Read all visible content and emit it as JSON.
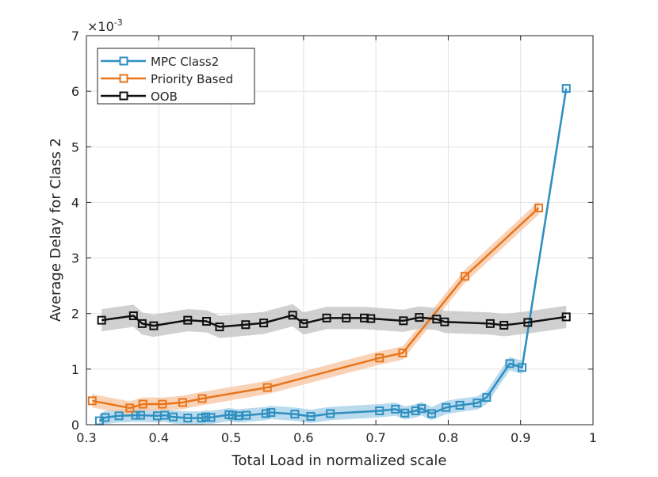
{
  "chart_data": {
    "type": "line",
    "title": "",
    "xlabel": "Total Load in normalized scale",
    "ylabel": "Average Delay for Class 2",
    "exponent_label": "×10",
    "exponent_power": "-3",
    "xlim": [
      0.3,
      1.0
    ],
    "ylim": [
      0,
      7
    ],
    "xticks": [
      0.3,
      0.4,
      0.5,
      0.6,
      0.7,
      0.8,
      0.9,
      1.0
    ],
    "xtick_labels": [
      "0.3",
      "0.4",
      "0.5",
      "0.6",
      "0.7",
      "0.8",
      "0.9",
      "1"
    ],
    "yticks": [
      0,
      1,
      2,
      3,
      4,
      5,
      6,
      7
    ],
    "ytick_labels": [
      "0",
      "1",
      "2",
      "3",
      "4",
      "5",
      "6",
      "7"
    ],
    "grid": true,
    "legend_position": "top-left",
    "series": [
      {
        "name": "MPC Class2",
        "color": "#2f8fc0",
        "band_color": "#a8d2e8",
        "band_width": 0.12,
        "x": [
          0.318,
          0.326,
          0.345,
          0.368,
          0.375,
          0.398,
          0.408,
          0.42,
          0.44,
          0.459,
          0.465,
          0.472,
          0.497,
          0.502,
          0.51,
          0.521,
          0.548,
          0.555,
          0.588,
          0.61,
          0.637,
          0.705,
          0.727,
          0.74,
          0.755,
          0.763,
          0.777,
          0.797,
          0.816,
          0.84,
          0.853,
          0.885,
          0.902,
          0.963
        ],
        "y": [
          0.07,
          0.13,
          0.16,
          0.17,
          0.17,
          0.16,
          0.17,
          0.14,
          0.12,
          0.12,
          0.14,
          0.13,
          0.18,
          0.17,
          0.16,
          0.17,
          0.2,
          0.22,
          0.19,
          0.15,
          0.2,
          0.25,
          0.28,
          0.21,
          0.25,
          0.29,
          0.2,
          0.31,
          0.35,
          0.39,
          0.49,
          1.1,
          1.03,
          6.05
        ]
      },
      {
        "name": "Priority Based",
        "color": "#e8751a",
        "band_color": "#f8c8a6",
        "band_width": 0.12,
        "x": [
          0.308,
          0.36,
          0.378,
          0.405,
          0.433,
          0.46,
          0.55,
          0.705,
          0.737,
          0.823,
          0.925
        ],
        "y": [
          0.43,
          0.3,
          0.37,
          0.37,
          0.4,
          0.47,
          0.67,
          1.2,
          1.29,
          2.67,
          3.9
        ]
      },
      {
        "name": "OOB",
        "color": "#101010",
        "band_color": "#c4c4c4",
        "band_width": 0.2,
        "x": [
          0.321,
          0.365,
          0.377,
          0.393,
          0.44,
          0.466,
          0.484,
          0.52,
          0.545,
          0.585,
          0.6,
          0.632,
          0.659,
          0.684,
          0.693,
          0.738,
          0.76,
          0.784,
          0.795,
          0.858,
          0.877,
          0.91,
          0.963
        ],
        "y": [
          1.88,
          1.96,
          1.82,
          1.78,
          1.88,
          1.86,
          1.76,
          1.8,
          1.83,
          1.97,
          1.82,
          1.92,
          1.92,
          1.92,
          1.91,
          1.87,
          1.93,
          1.9,
          1.85,
          1.82,
          1.79,
          1.84,
          1.94
        ]
      }
    ]
  }
}
